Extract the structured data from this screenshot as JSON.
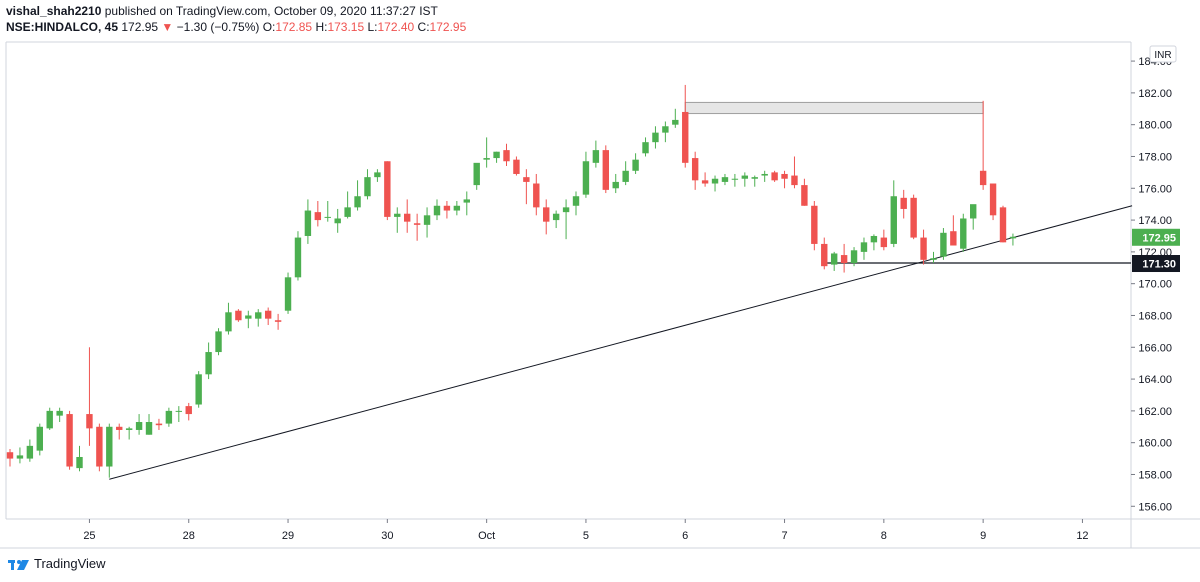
{
  "header": {
    "author": "vishal_shah2210",
    "published_text": "published on TradingView.com, October 09, 2020 11:37:27 IST",
    "symbol": "NSE:HINDALCO, 45",
    "last": "172.95",
    "change": "−1.30 (−0.75%)",
    "o_label": "O:",
    "o_val": "172.85",
    "h_label": "H:",
    "h_val": "173.15",
    "l_label": "L:",
    "l_val": "172.40",
    "c_label": "C:",
    "c_val": "172.95"
  },
  "footer": {
    "brand": "TradingView"
  },
  "colors": {
    "up": "#4caf50",
    "down": "#ef5350",
    "axis": "#d1d4dc",
    "text": "#131722"
  },
  "chart_data": {
    "type": "candlestick",
    "currency": "INR",
    "ylim": [
      155.2,
      185.2
    ],
    "y_ticks": [
      156,
      158,
      160,
      162,
      164,
      166,
      168,
      170,
      172,
      174,
      176,
      178,
      180,
      182,
      184
    ],
    "x_ticks": [
      {
        "label": "25",
        "idx": 8
      },
      {
        "label": "28",
        "idx": 18
      },
      {
        "label": "29",
        "idx": 28
      },
      {
        "label": "30",
        "idx": 38
      },
      {
        "label": "Oct",
        "idx": 48
      },
      {
        "label": "5",
        "idx": 58
      },
      {
        "label": "6",
        "idx": 68
      },
      {
        "label": "7",
        "idx": 78
      },
      {
        "label": "8",
        "idx": 88
      },
      {
        "label": "9",
        "idx": 98
      },
      {
        "label": "12",
        "idx": 108
      }
    ],
    "last_price_label": "172.95",
    "level_label": "171.30",
    "level_price": 171.3,
    "candles": [
      [
        159.4,
        159.6,
        158.5,
        159.0
      ],
      [
        159.0,
        159.7,
        158.7,
        159.2
      ],
      [
        159.0,
        160.2,
        158.8,
        159.8
      ],
      [
        159.5,
        161.2,
        159.2,
        161.0
      ],
      [
        160.9,
        162.2,
        160.8,
        162.0
      ],
      [
        161.7,
        162.2,
        161.3,
        162.0
      ],
      [
        161.8,
        162.0,
        158.3,
        158.5
      ],
      [
        158.4,
        159.8,
        158.2,
        159.1
      ],
      [
        161.8,
        166.0,
        159.8,
        160.9
      ],
      [
        161.0,
        161.2,
        158.2,
        158.5
      ],
      [
        158.5,
        161.2,
        157.8,
        161.0
      ],
      [
        161.0,
        161.2,
        160.2,
        160.8
      ],
      [
        160.8,
        161.0,
        160.2,
        160.9
      ],
      [
        160.8,
        161.8,
        160.5,
        161.3
      ],
      [
        160.5,
        161.8,
        160.5,
        161.3
      ],
      [
        161.2,
        161.5,
        160.8,
        161.1
      ],
      [
        161.2,
        162.2,
        161.0,
        162.0
      ],
      [
        162.0,
        162.3,
        161.3,
        162.0
      ],
      [
        162.3,
        162.5,
        161.4,
        161.8
      ],
      [
        162.4,
        164.5,
        162.2,
        164.3
      ],
      [
        164.3,
        166.3,
        164.0,
        165.7
      ],
      [
        165.7,
        167.2,
        165.5,
        167.0
      ],
      [
        167.0,
        168.8,
        166.8,
        168.2
      ],
      [
        168.3,
        168.4,
        167.6,
        167.7
      ],
      [
        167.8,
        168.3,
        167.2,
        168.0
      ],
      [
        167.8,
        168.4,
        167.3,
        168.2
      ],
      [
        168.3,
        168.5,
        167.4,
        167.8
      ],
      [
        167.7,
        168.1,
        167.1,
        167.6
      ],
      [
        168.3,
        170.7,
        168.1,
        170.4
      ],
      [
        170.4,
        173.3,
        170.2,
        172.9
      ],
      [
        173.0,
        175.3,
        172.5,
        174.6
      ],
      [
        174.5,
        175.2,
        173.6,
        174.0
      ],
      [
        174.2,
        175.2,
        173.9,
        174.2
      ],
      [
        173.8,
        174.7,
        173.2,
        174.1
      ],
      [
        174.2,
        175.8,
        174.1,
        174.8
      ],
      [
        174.8,
        176.5,
        174.6,
        175.5
      ],
      [
        175.5,
        177.2,
        175.3,
        176.7
      ],
      [
        176.7,
        177.2,
        176.4,
        177.0
      ],
      [
        177.7,
        177.7,
        174.0,
        174.2
      ],
      [
        174.2,
        174.8,
        173.2,
        174.4
      ],
      [
        174.4,
        175.3,
        173.2,
        173.9
      ],
      [
        173.8,
        174.4,
        172.7,
        173.7
      ],
      [
        173.7,
        174.8,
        172.9,
        174.3
      ],
      [
        174.3,
        175.3,
        174.0,
        174.9
      ],
      [
        174.9,
        175.2,
        174.1,
        174.6
      ],
      [
        174.6,
        175.2,
        174.3,
        174.9
      ],
      [
        175.1,
        175.8,
        174.3,
        175.3
      ],
      [
        176.2,
        177.5,
        175.9,
        177.6
      ],
      [
        177.8,
        179.2,
        177.3,
        177.9
      ],
      [
        177.9,
        178.3,
        177.6,
        178.3
      ],
      [
        178.4,
        178.8,
        177.4,
        177.7
      ],
      [
        177.8,
        178.0,
        176.8,
        176.9
      ],
      [
        176.7,
        177.2,
        175.0,
        176.4
      ],
      [
        176.3,
        176.9,
        174.3,
        174.8
      ],
      [
        174.8,
        175.3,
        173.1,
        173.9
      ],
      [
        174.0,
        174.6,
        173.5,
        174.4
      ],
      [
        174.5,
        175.3,
        172.8,
        174.8
      ],
      [
        174.9,
        175.8,
        174.3,
        175.5
      ],
      [
        175.6,
        178.3,
        175.4,
        177.7
      ],
      [
        177.6,
        179.0,
        177.3,
        178.4
      ],
      [
        178.4,
        178.7,
        175.7,
        175.9
      ],
      [
        176.0,
        176.9,
        175.7,
        176.4
      ],
      [
        176.4,
        177.7,
        176.2,
        177.1
      ],
      [
        177.1,
        178.2,
        176.9,
        177.8
      ],
      [
        178.2,
        179.2,
        178.0,
        178.9
      ],
      [
        178.9,
        179.9,
        178.5,
        179.5
      ],
      [
        179.5,
        180.2,
        178.9,
        179.9
      ],
      [
        180.0,
        181.0,
        179.8,
        180.3
      ],
      [
        180.8,
        182.5,
        177.3,
        177.6
      ],
      [
        177.9,
        178.3,
        175.9,
        176.5
      ],
      [
        176.5,
        177.0,
        176.1,
        176.3
      ],
      [
        176.3,
        176.8,
        175.8,
        176.6
      ],
      [
        176.4,
        176.9,
        176.2,
        176.7
      ],
      [
        176.6,
        176.9,
        176.1,
        176.6
      ],
      [
        176.6,
        177.0,
        176.1,
        176.8
      ],
      [
        176.6,
        176.8,
        176.1,
        176.7
      ],
      [
        176.8,
        177.1,
        176.4,
        176.9
      ],
      [
        177.0,
        177.1,
        176.4,
        176.5
      ],
      [
        176.9,
        177.1,
        176.0,
        176.6
      ],
      [
        176.8,
        178.0,
        176.0,
        176.2
      ],
      [
        176.2,
        176.6,
        174.9,
        174.9
      ],
      [
        174.9,
        175.2,
        172.1,
        172.5
      ],
      [
        172.5,
        172.9,
        170.9,
        171.1
      ],
      [
        171.2,
        172.0,
        170.8,
        171.9
      ],
      [
        171.8,
        172.5,
        170.7,
        171.3
      ],
      [
        171.3,
        172.3,
        171.1,
        172.1
      ],
      [
        172.0,
        172.9,
        171.5,
        172.6
      ],
      [
        172.6,
        173.1,
        172.1,
        173.0
      ],
      [
        172.9,
        173.4,
        172.1,
        172.3
      ],
      [
        172.5,
        176.5,
        172.3,
        175.5
      ],
      [
        175.4,
        175.9,
        174.1,
        174.7
      ],
      [
        175.4,
        175.6,
        172.8,
        172.9
      ],
      [
        172.9,
        173.4,
        171.2,
        171.5
      ],
      [
        171.5,
        172.0,
        171.3,
        171.6
      ],
      [
        171.7,
        173.5,
        171.5,
        173.2
      ],
      [
        173.3,
        174.3,
        172.5,
        172.4
      ],
      [
        172.2,
        174.4,
        172.0,
        174.1
      ],
      [
        174.1,
        174.9,
        173.4,
        175.0
      ],
      [
        177.1,
        181.5,
        175.9,
        176.2
      ],
      [
        176.3,
        176.3,
        174.0,
        174.3
      ],
      [
        174.8,
        174.9,
        172.6,
        172.6
      ],
      [
        172.85,
        173.15,
        172.4,
        172.95
      ]
    ],
    "trendline": {
      "from": {
        "idx": 10,
        "price": 157.7
      },
      "to": {
        "idx": 113,
        "price": 174.9
      }
    },
    "horizontal_ray": {
      "from_idx": 82,
      "price": 171.3
    },
    "rectangle": {
      "from_idx": 68,
      "to_idx": 98,
      "price_top": 181.4,
      "price_bottom": 180.7
    }
  }
}
